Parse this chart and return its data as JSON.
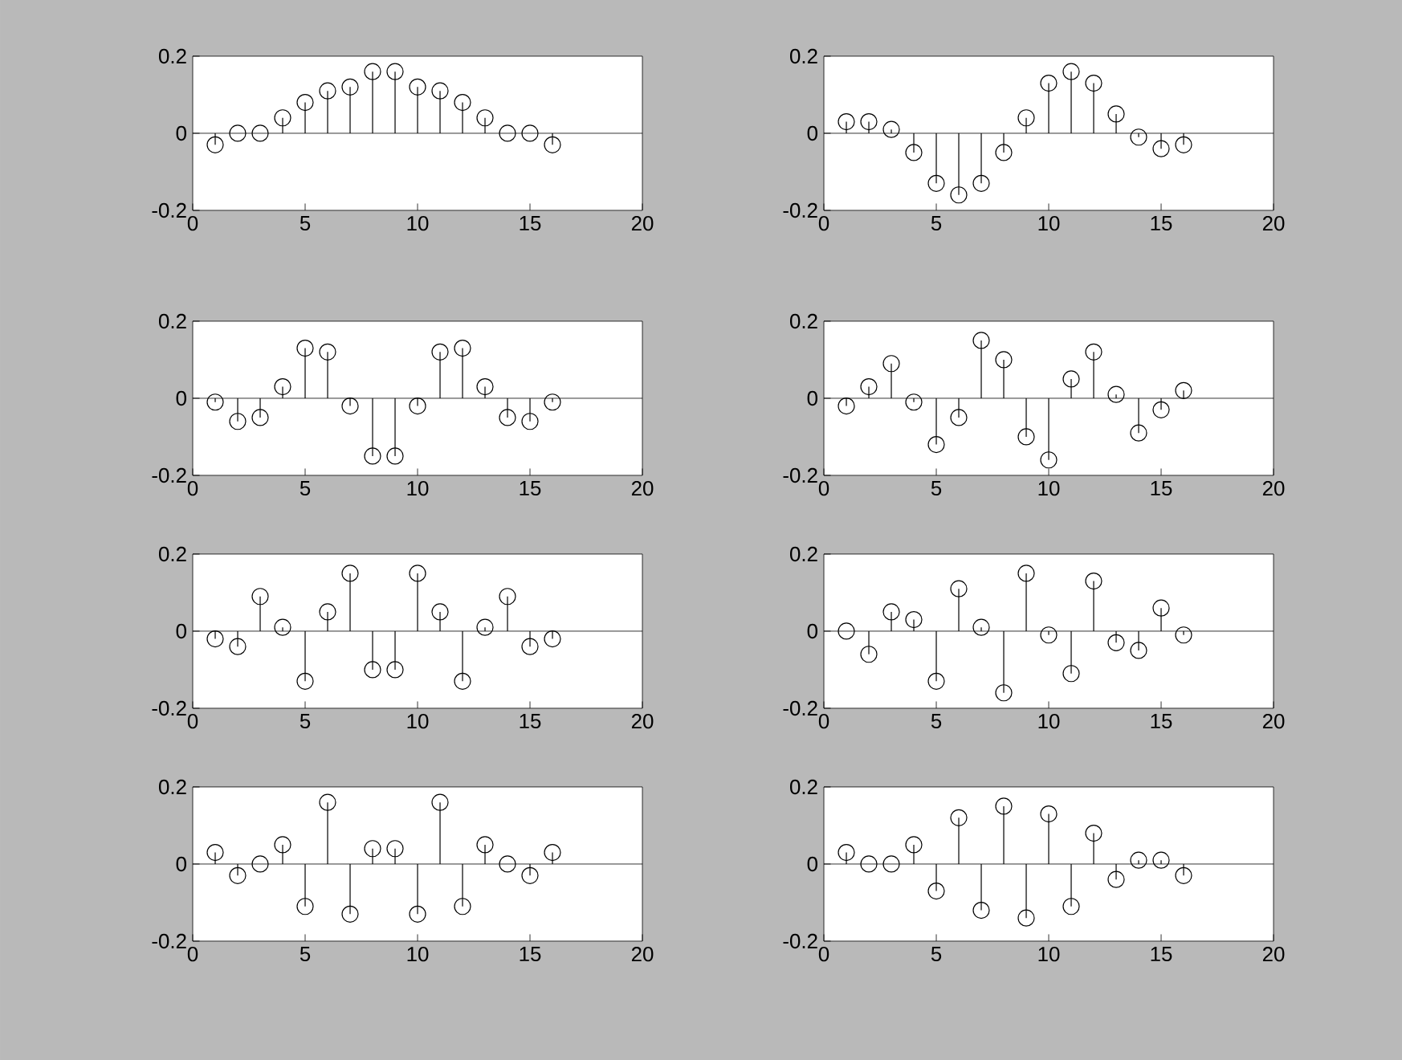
{
  "chart_data": [
    {
      "type": "lollipop",
      "x": [
        1,
        2,
        3,
        4,
        5,
        6,
        7,
        8,
        9,
        10,
        11,
        12,
        13,
        14,
        15,
        16
      ],
      "values": [
        -0.03,
        0,
        0,
        0.04,
        0.08,
        0.11,
        0.12,
        0.16,
        0.16,
        0.12,
        0.11,
        0.08,
        0.04,
        0,
        0,
        -0.03
      ],
      "color": "#000000",
      "marker": "circle",
      "xlim": [
        0,
        20
      ],
      "ylim": [
        -0.2,
        0.2
      ],
      "xticks": [
        0,
        5,
        10,
        15,
        20
      ],
      "yticks": [
        -0.2,
        0,
        0.2
      ],
      "ref_lines": [
        {
          "axis": "y",
          "value": 0
        }
      ]
    },
    {
      "type": "lollipop",
      "x": [
        1,
        2,
        3,
        4,
        5,
        6,
        7,
        8,
        9,
        10,
        11,
        12,
        13,
        14,
        15,
        16
      ],
      "values": [
        0.03,
        0.03,
        0.01,
        -0.05,
        -0.13,
        -0.16,
        -0.13,
        -0.05,
        0.04,
        0.13,
        0.16,
        0.13,
        0.05,
        -0.01,
        -0.04,
        -0.03
      ],
      "color": "#000000",
      "marker": "circle",
      "xlim": [
        0,
        20
      ],
      "ylim": [
        -0.2,
        0.2
      ],
      "xticks": [
        0,
        5,
        10,
        15,
        20
      ],
      "yticks": [
        -0.2,
        0,
        0.2
      ],
      "ref_lines": [
        {
          "axis": "y",
          "value": 0
        }
      ]
    },
    {
      "type": "lollipop",
      "x": [
        1,
        2,
        3,
        4,
        5,
        6,
        7,
        8,
        9,
        10,
        11,
        12,
        13,
        14,
        15,
        16
      ],
      "values": [
        -0.01,
        -0.06,
        -0.05,
        0.03,
        0.13,
        0.12,
        -0.02,
        -0.15,
        -0.15,
        -0.02,
        0.12,
        0.13,
        0.03,
        -0.05,
        -0.06,
        -0.01
      ],
      "color": "#000000",
      "marker": "circle",
      "xlim": [
        0,
        20
      ],
      "ylim": [
        -0.2,
        0.2
      ],
      "xticks": [
        0,
        5,
        10,
        15,
        20
      ],
      "yticks": [
        -0.2,
        0,
        0.2
      ],
      "ref_lines": [
        {
          "axis": "y",
          "value": 0
        }
      ]
    },
    {
      "type": "lollipop",
      "x": [
        1,
        2,
        3,
        4,
        5,
        6,
        7,
        8,
        9,
        10,
        11,
        12,
        13,
        14,
        15,
        16
      ],
      "values": [
        -0.02,
        0.03,
        0.09,
        -0.01,
        -0.12,
        -0.05,
        0.15,
        0.1,
        -0.1,
        -0.16,
        0.05,
        0.12,
        0.01,
        -0.09,
        -0.03,
        0.02
      ],
      "color": "#000000",
      "marker": "circle",
      "xlim": [
        0,
        20
      ],
      "ylim": [
        -0.2,
        0.2
      ],
      "xticks": [
        0,
        5,
        10,
        15,
        20
      ],
      "yticks": [
        -0.2,
        0,
        0.2
      ],
      "ref_lines": [
        {
          "axis": "y",
          "value": 0
        }
      ]
    },
    {
      "type": "lollipop",
      "x": [
        1,
        2,
        3,
        4,
        5,
        6,
        7,
        8,
        9,
        10,
        11,
        12,
        13,
        14,
        15,
        16
      ],
      "values": [
        -0.02,
        -0.04,
        0.09,
        0.01,
        -0.13,
        0.05,
        0.15,
        -0.1,
        -0.1,
        0.15,
        0.05,
        -0.13,
        0.01,
        0.09,
        -0.04,
        -0.02
      ],
      "color": "#000000",
      "marker": "circle",
      "xlim": [
        0,
        20
      ],
      "ylim": [
        -0.2,
        0.2
      ],
      "xticks": [
        0,
        5,
        10,
        15,
        20
      ],
      "yticks": [
        -0.2,
        0,
        0.2
      ],
      "ref_lines": [
        {
          "axis": "y",
          "value": 0
        }
      ]
    },
    {
      "type": "lollipop",
      "x": [
        1,
        2,
        3,
        4,
        5,
        6,
        7,
        8,
        9,
        10,
        11,
        12,
        13,
        14,
        15,
        16
      ],
      "values": [
        0,
        -0.06,
        0.05,
        0.03,
        -0.13,
        0.11,
        0.01,
        -0.16,
        0.15,
        -0.01,
        -0.11,
        0.13,
        -0.03,
        -0.05,
        0.06,
        -0.01
      ],
      "color": "#000000",
      "marker": "circle",
      "xlim": [
        0,
        20
      ],
      "ylim": [
        -0.2,
        0.2
      ],
      "xticks": [
        0,
        5,
        10,
        15,
        20
      ],
      "yticks": [
        -0.2,
        0,
        0.2
      ],
      "ref_lines": [
        {
          "axis": "y",
          "value": 0
        }
      ]
    },
    {
      "type": "lollipop",
      "x": [
        1,
        2,
        3,
        4,
        5,
        6,
        7,
        8,
        9,
        10,
        11,
        12,
        13,
        14,
        15,
        16
      ],
      "values": [
        0.03,
        -0.03,
        0,
        0.05,
        -0.11,
        0.16,
        -0.13,
        0.04,
        0.04,
        -0.13,
        0.16,
        -0.11,
        0.05,
        0,
        -0.03,
        0.03
      ],
      "color": "#000000",
      "marker": "circle",
      "xlim": [
        0,
        20
      ],
      "ylim": [
        -0.2,
        0.2
      ],
      "xticks": [
        0,
        5,
        10,
        15,
        20
      ],
      "yticks": [
        -0.2,
        0,
        0.2
      ],
      "ref_lines": [
        {
          "axis": "y",
          "value": 0
        }
      ]
    },
    {
      "type": "lollipop",
      "x": [
        1,
        2,
        3,
        4,
        5,
        6,
        7,
        8,
        9,
        10,
        11,
        12,
        13,
        14,
        15,
        16
      ],
      "values": [
        0.03,
        0,
        0,
        0.05,
        -0.07,
        0.12,
        -0.12,
        0.15,
        -0.14,
        0.13,
        -0.11,
        0.08,
        -0.04,
        0.01,
        0.01,
        -0.03
      ],
      "color": "#000000",
      "marker": "circle",
      "xlim": [
        0,
        20
      ],
      "ylim": [
        -0.2,
        0.2
      ],
      "xticks": [
        0,
        5,
        10,
        15,
        20
      ],
      "yticks": [
        -0.2,
        0,
        0.2
      ],
      "ref_lines": [
        {
          "axis": "y",
          "value": 0
        }
      ]
    }
  ]
}
